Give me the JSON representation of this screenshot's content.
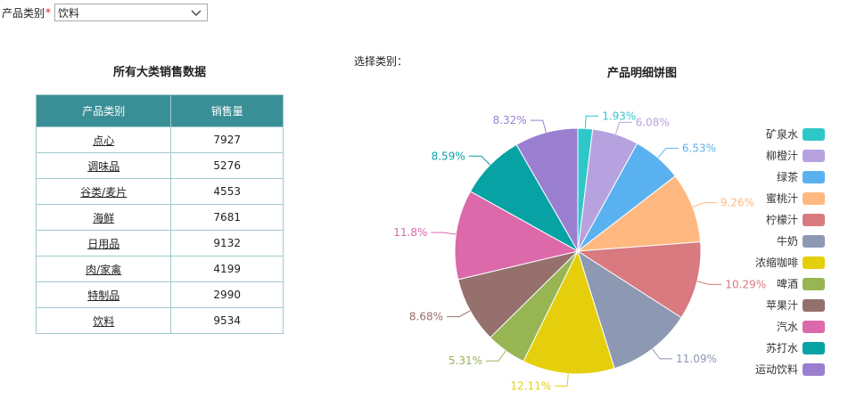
{
  "filter": {
    "label": "产品类别",
    "required_mark": "*",
    "selected": "饮料"
  },
  "table": {
    "title": "所有大类销售数据",
    "headers": [
      "产品类别",
      "销售量"
    ],
    "rows": [
      {
        "category": "点心",
        "sales": "7927"
      },
      {
        "category": "调味品",
        "sales": "5276"
      },
      {
        "category": "谷类/麦片",
        "sales": "4553"
      },
      {
        "category": "海鲜",
        "sales": "7681"
      },
      {
        "category": "日用品",
        "sales": "9132"
      },
      {
        "category": "肉/家禽",
        "sales": "4199"
      },
      {
        "category": "特制品",
        "sales": "2990"
      },
      {
        "category": "饮料",
        "sales": "9534"
      }
    ]
  },
  "select_label": "选择类别：",
  "chart_data": {
    "type": "pie",
    "title": "产品明细饼图",
    "legend_position": "right",
    "slices": [
      {
        "name": "矿泉水",
        "value": 1.93,
        "label": "1.93%",
        "color": "#2ec7c9"
      },
      {
        "name": "柳橙汁",
        "value": 6.08,
        "label": "6.08%",
        "color": "#b6a2de"
      },
      {
        "name": "绿茶",
        "value": 6.53,
        "label": "6.53%",
        "color": "#5ab1ef"
      },
      {
        "name": "蜜桃汁",
        "value": 9.26,
        "label": "9.26%",
        "color": "#ffb980"
      },
      {
        "name": "柠檬汁",
        "value": 10.29,
        "label": "10.29%",
        "color": "#d87a80"
      },
      {
        "name": "牛奶",
        "value": 11.09,
        "label": "11.09%",
        "color": "#8d98b3"
      },
      {
        "name": "浓缩咖啡",
        "value": 12.11,
        "label": "12.11%",
        "color": "#e5cf0d"
      },
      {
        "name": "啤酒",
        "value": 5.31,
        "label": "5.31%",
        "color": "#97b552"
      },
      {
        "name": "苹果汁",
        "value": 8.68,
        "label": "8.68%",
        "color": "#95706d"
      },
      {
        "name": "汽水",
        "value": 11.8,
        "label": "11.8%",
        "color": "#dc69aa"
      },
      {
        "name": "苏打水",
        "value": 8.59,
        "label": "8.59%",
        "color": "#07a2a4"
      },
      {
        "name": "运动饮料",
        "value": 8.32,
        "label": "8.32%",
        "color": "#9a7fd1"
      }
    ]
  }
}
